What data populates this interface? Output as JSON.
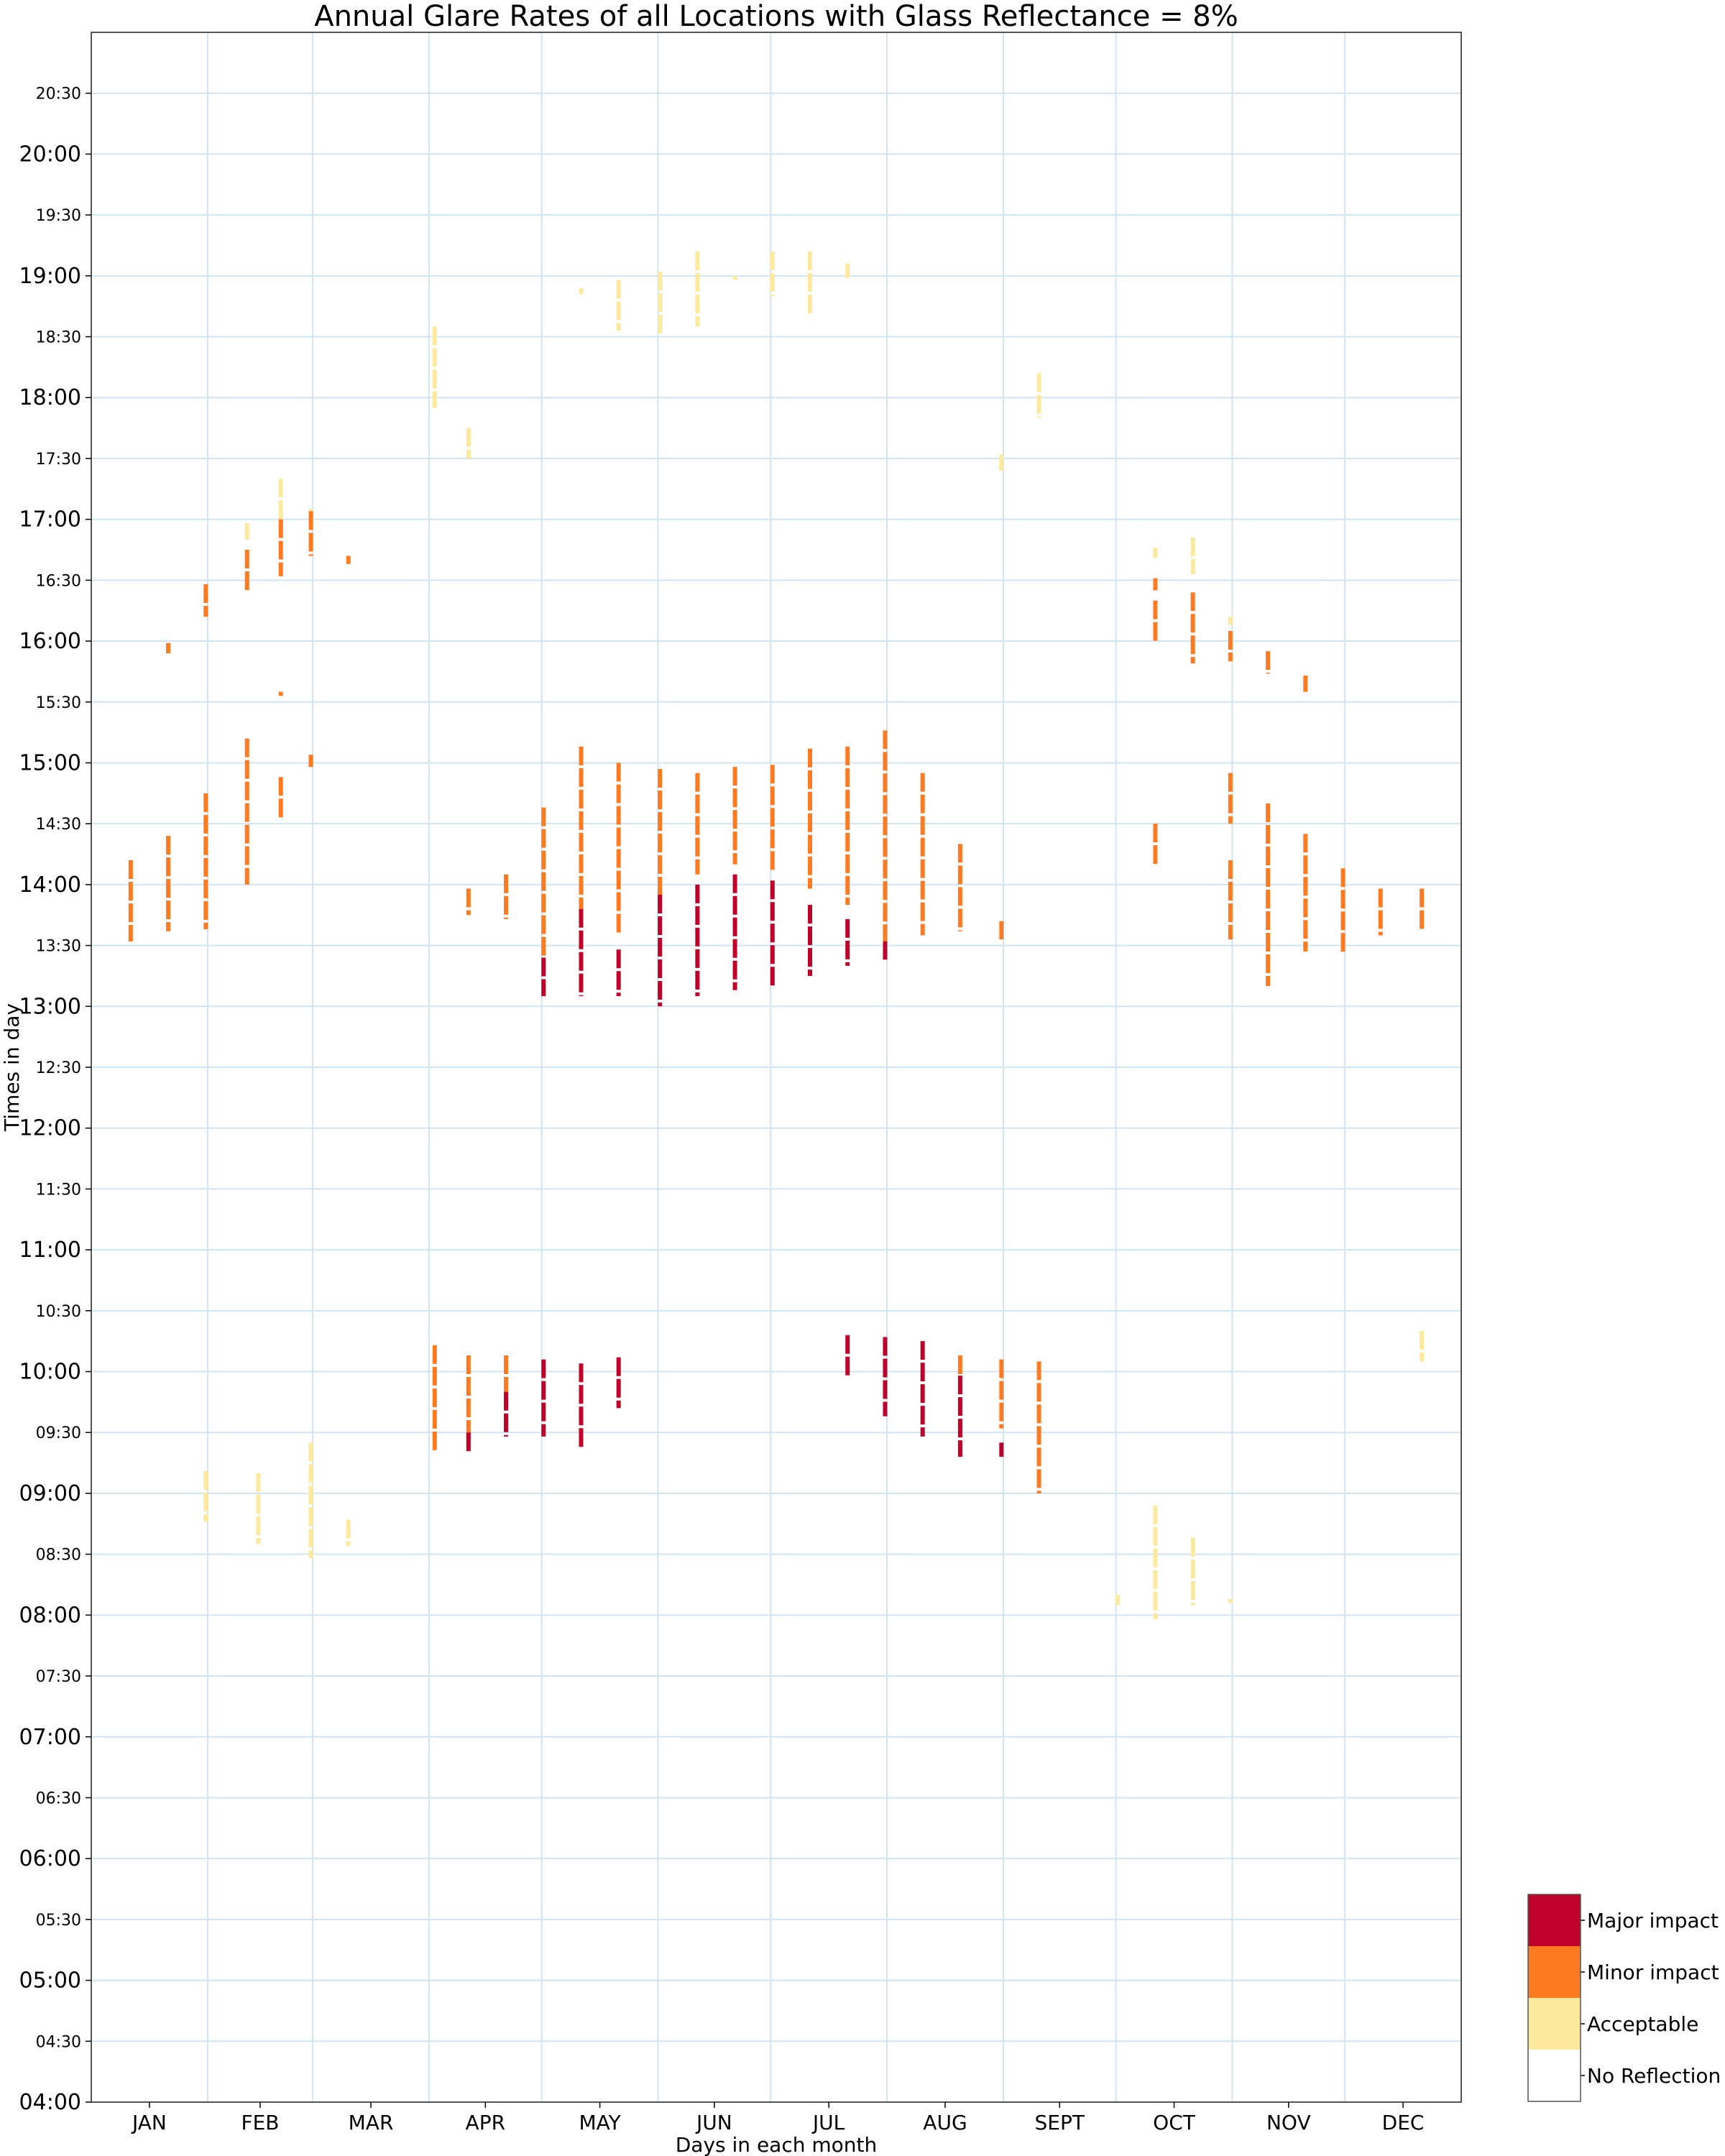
{
  "chart_data": {
    "type": "scatter",
    "title": "Annual Glare Rates of all Locations with Glass Reflectance = 8%",
    "xlabel": "Days in each month",
    "ylabel": "Times in day",
    "x_axis_unit": "day of year",
    "ylim": [
      "04:00",
      "21:00"
    ],
    "xlim": [
      1,
      365
    ],
    "grid": true,
    "months": [
      {
        "label": "JAN",
        "start": 1,
        "end": 31
      },
      {
        "label": "FEB",
        "start": 32,
        "end": 59
      },
      {
        "label": "MAR",
        "start": 60,
        "end": 90
      },
      {
        "label": "APR",
        "start": 91,
        "end": 120
      },
      {
        "label": "MAY",
        "start": 121,
        "end": 151
      },
      {
        "label": "JUN",
        "start": 152,
        "end": 181
      },
      {
        "label": "JUL",
        "start": 182,
        "end": 212
      },
      {
        "label": "AUG",
        "start": 213,
        "end": 243
      },
      {
        "label": "SEPT",
        "start": 244,
        "end": 273
      },
      {
        "label": "OCT",
        "start": 274,
        "end": 304
      },
      {
        "label": "NOV",
        "start": 305,
        "end": 334
      },
      {
        "label": "DEC",
        "start": 335,
        "end": 365
      }
    ],
    "y_ticks": [
      {
        "label": "04:00",
        "major": true
      },
      {
        "label": "04:30",
        "major": false
      },
      {
        "label": "05:00",
        "major": true
      },
      {
        "label": "05:30",
        "major": false
      },
      {
        "label": "06:00",
        "major": true
      },
      {
        "label": "06:30",
        "major": false
      },
      {
        "label": "07:00",
        "major": true
      },
      {
        "label": "07:30",
        "major": false
      },
      {
        "label": "08:00",
        "major": true
      },
      {
        "label": "08:30",
        "major": false
      },
      {
        "label": "09:00",
        "major": true
      },
      {
        "label": "09:30",
        "major": false
      },
      {
        "label": "10:00",
        "major": true
      },
      {
        "label": "10:30",
        "major": false
      },
      {
        "label": "11:00",
        "major": true
      },
      {
        "label": "11:30",
        "major": false
      },
      {
        "label": "12:00",
        "major": true
      },
      {
        "label": "12:30",
        "major": false
      },
      {
        "label": "13:00",
        "major": true
      },
      {
        "label": "13:30",
        "major": false
      },
      {
        "label": "14:00",
        "major": true
      },
      {
        "label": "14:30",
        "major": false
      },
      {
        "label": "15:00",
        "major": true
      },
      {
        "label": "15:30",
        "major": false
      },
      {
        "label": "16:00",
        "major": true
      },
      {
        "label": "16:30",
        "major": false
      },
      {
        "label": "17:00",
        "major": true
      },
      {
        "label": "17:30",
        "major": false
      },
      {
        "label": "18:00",
        "major": true
      },
      {
        "label": "18:30",
        "major": false
      },
      {
        "label": "19:00",
        "major": true
      },
      {
        "label": "19:30",
        "major": false
      },
      {
        "label": "20:00",
        "major": true
      },
      {
        "label": "20:30",
        "major": false
      }
    ],
    "legend": [
      {
        "label": "Major impact",
        "color": "#c0022a"
      },
      {
        "label": "Minor impact",
        "color": "#fd7a20"
      },
      {
        "label": "Acceptable",
        "color": "#fde99b"
      },
      {
        "label": "No Reflection",
        "color": "#ffffff"
      }
    ],
    "legend_placement": "bottom-right, outside plot",
    "grid_color": "#cfe4f4",
    "series": [
      {
        "name": "Acceptable",
        "color": "#fde99b",
        "segments": [
          {
            "day": 31,
            "start": "08:46",
            "end": "09:11"
          },
          {
            "day": 45,
            "start": "08:35",
            "end": "09:10"
          },
          {
            "day": 59,
            "start": "08:28",
            "end": "09:25"
          },
          {
            "day": 69,
            "start": "08:34",
            "end": "08:47"
          },
          {
            "day": 42,
            "start": "16:50",
            "end": "16:58"
          },
          {
            "day": 51,
            "start": "16:55",
            "end": "17:20"
          },
          {
            "day": 59,
            "start": "17:00",
            "end": "17:05"
          },
          {
            "day": 92,
            "start": "17:55",
            "end": "18:35"
          },
          {
            "day": 101,
            "start": "17:30",
            "end": "17:45"
          },
          {
            "day": 131,
            "start": "18:51",
            "end": "18:54"
          },
          {
            "day": 141,
            "start": "18:33",
            "end": "18:58"
          },
          {
            "day": 152,
            "start": "18:30",
            "end": "19:02"
          },
          {
            "day": 162,
            "start": "18:35",
            "end": "19:12"
          },
          {
            "day": 172,
            "start": "18:58",
            "end": "19:00"
          },
          {
            "day": 182,
            "start": "18:50",
            "end": "19:12"
          },
          {
            "day": 192,
            "start": "18:40",
            "end": "19:12"
          },
          {
            "day": 202,
            "start": "18:59",
            "end": "19:06"
          },
          {
            "day": 243,
            "start": "17:24",
            "end": "17:32"
          },
          {
            "day": 253,
            "start": "17:50",
            "end": "18:12"
          },
          {
            "day": 274,
            "start": "08:05",
            "end": "08:10"
          },
          {
            "day": 284,
            "start": "07:58",
            "end": "08:54"
          },
          {
            "day": 294,
            "start": "08:05",
            "end": "08:38"
          },
          {
            "day": 304,
            "start": "08:06",
            "end": "08:08"
          },
          {
            "day": 284,
            "start": "16:41",
            "end": "16:46"
          },
          {
            "day": 294,
            "start": "16:33",
            "end": "16:51"
          },
          {
            "day": 304,
            "start": "16:08",
            "end": "16:12"
          },
          {
            "day": 355,
            "start": "10:05",
            "end": "10:20"
          }
        ]
      },
      {
        "name": "Minor impact",
        "color": "#fd7a20",
        "segments": [
          {
            "day": 11,
            "start": "13:32",
            "end": "14:12"
          },
          {
            "day": 21,
            "start": "13:37",
            "end": "14:24"
          },
          {
            "day": 21,
            "start": "15:54",
            "end": "15:59"
          },
          {
            "day": 31,
            "start": "13:38",
            "end": "14:45"
          },
          {
            "day": 31,
            "start": "16:12",
            "end": "16:28"
          },
          {
            "day": 42,
            "start": "14:00",
            "end": "15:12"
          },
          {
            "day": 42,
            "start": "16:25",
            "end": "16:45"
          },
          {
            "day": 51,
            "start": "15:33",
            "end": "15:35"
          },
          {
            "day": 51,
            "start": "14:32",
            "end": "14:53"
          },
          {
            "day": 51,
            "start": "16:32",
            "end": "17:00"
          },
          {
            "day": 59,
            "start": "14:58",
            "end": "15:04"
          },
          {
            "day": 59,
            "start": "16:42",
            "end": "17:04"
          },
          {
            "day": 69,
            "start": "16:38",
            "end": "16:42"
          },
          {
            "day": 92,
            "start": "09:20",
            "end": "10:13"
          },
          {
            "day": 101,
            "start": "13:45",
            "end": "13:58"
          },
          {
            "day": 101,
            "start": "09:25",
            "end": "10:08"
          },
          {
            "day": 111,
            "start": "13:43",
            "end": "14:05"
          },
          {
            "day": 111,
            "start": "09:45",
            "end": "10:08"
          },
          {
            "day": 121,
            "start": "13:24",
            "end": "14:38"
          },
          {
            "day": 131,
            "start": "13:48",
            "end": "15:08"
          },
          {
            "day": 141,
            "start": "13:35",
            "end": "15:00"
          },
          {
            "day": 152,
            "start": "13:48",
            "end": "14:57"
          },
          {
            "day": 162,
            "start": "14:05",
            "end": "14:55"
          },
          {
            "day": 172,
            "start": "14:10",
            "end": "14:58"
          },
          {
            "day": 182,
            "start": "14:07",
            "end": "14:59"
          },
          {
            "day": 192,
            "start": "13:58",
            "end": "15:07"
          },
          {
            "day": 202,
            "start": "13:50",
            "end": "15:08"
          },
          {
            "day": 212,
            "start": "13:32",
            "end": "15:16"
          },
          {
            "day": 222,
            "start": "13:35",
            "end": "14:55"
          },
          {
            "day": 232,
            "start": "13:37",
            "end": "14:20"
          },
          {
            "day": 232,
            "start": "09:58",
            "end": "10:08"
          },
          {
            "day": 243,
            "start": "13:33",
            "end": "13:42"
          },
          {
            "day": 243,
            "start": "09:32",
            "end": "10:06"
          },
          {
            "day": 253,
            "start": "09:00",
            "end": "10:05"
          },
          {
            "day": 284,
            "start": "16:00",
            "end": "16:20"
          },
          {
            "day": 284,
            "start": "16:25",
            "end": "16:31"
          },
          {
            "day": 284,
            "start": "14:10",
            "end": "14:30"
          },
          {
            "day": 294,
            "start": "15:49",
            "end": "16:24"
          },
          {
            "day": 304,
            "start": "15:50",
            "end": "16:05"
          },
          {
            "day": 304,
            "start": "14:30",
            "end": "14:55"
          },
          {
            "day": 304,
            "start": "13:33",
            "end": "14:12"
          },
          {
            "day": 314,
            "start": "15:44",
            "end": "15:55"
          },
          {
            "day": 314,
            "start": "13:10",
            "end": "14:40"
          },
          {
            "day": 324,
            "start": "15:35",
            "end": "15:43"
          },
          {
            "day": 324,
            "start": "13:27",
            "end": "14:25"
          },
          {
            "day": 334,
            "start": "13:26",
            "end": "14:08"
          },
          {
            "day": 344,
            "start": "13:35",
            "end": "13:58"
          },
          {
            "day": 355,
            "start": "13:38",
            "end": "13:58"
          }
        ]
      },
      {
        "name": "Major impact",
        "color": "#c0022a",
        "segments": [
          {
            "day": 101,
            "start": "09:20",
            "end": "09:30"
          },
          {
            "day": 111,
            "start": "09:28",
            "end": "09:50"
          },
          {
            "day": 121,
            "start": "09:28",
            "end": "10:06"
          },
          {
            "day": 131,
            "start": "09:22",
            "end": "10:04"
          },
          {
            "day": 141,
            "start": "09:42",
            "end": "10:07"
          },
          {
            "day": 121,
            "start": "13:05",
            "end": "13:24"
          },
          {
            "day": 131,
            "start": "13:05",
            "end": "13:48"
          },
          {
            "day": 141,
            "start": "13:05",
            "end": "13:28"
          },
          {
            "day": 152,
            "start": "13:00",
            "end": "13:55"
          },
          {
            "day": 162,
            "start": "13:05",
            "end": "14:00"
          },
          {
            "day": 172,
            "start": "13:08",
            "end": "14:05"
          },
          {
            "day": 182,
            "start": "13:10",
            "end": "14:02"
          },
          {
            "day": 192,
            "start": "13:15",
            "end": "13:50"
          },
          {
            "day": 202,
            "start": "13:20",
            "end": "13:43"
          },
          {
            "day": 212,
            "start": "13:23",
            "end": "13:32"
          },
          {
            "day": 202,
            "start": "09:58",
            "end": "10:18"
          },
          {
            "day": 212,
            "start": "09:38",
            "end": "10:17"
          },
          {
            "day": 222,
            "start": "09:28",
            "end": "10:15"
          },
          {
            "day": 232,
            "start": "09:18",
            "end": "09:58"
          },
          {
            "day": 243,
            "start": "09:18",
            "end": "09:25"
          }
        ]
      }
    ]
  }
}
